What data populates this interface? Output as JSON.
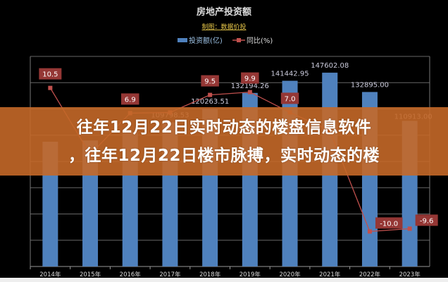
{
  "chart_data": {
    "type": "bar+line",
    "title": "房地产投资额",
    "subtitle": "制图：数据价投",
    "categories": [
      "2014年",
      "2015年",
      "2016年",
      "2017年",
      "2018年",
      "2019年",
      "2020年",
      "2021年",
      "2022年",
      "2023年"
    ],
    "series": [
      {
        "name": "投资额(亿)",
        "type": "bar",
        "axis": "left",
        "color": "#4f81bd",
        "values": [
          95035.61,
          95978.85,
          102580.61,
          109798.53,
          120263.51,
          132194.26,
          141442.95,
          147602.08,
          132895.0,
          110913.0
        ],
        "labels": [
          "",
          "",
          "",
          "109798.53",
          "120263.51",
          "132194.26",
          "141442.95",
          "147602.08",
          "132895.00",
          "110913.00"
        ]
      },
      {
        "name": "同比(%)",
        "type": "line",
        "axis": "right",
        "color": "#c0504d",
        "values": [
          10.5,
          1.0,
          6.9,
          7.0,
          9.5,
          9.9,
          7.0,
          4.4,
          -10.0,
          -9.6
        ],
        "labels": [
          "10.5",
          "",
          "6.9",
          "",
          "9.5",
          "9.9",
          "7.0",
          "",
          "-10.0",
          "-9.6"
        ]
      }
    ],
    "ylim_left": [
      0,
      160000
    ],
    "ylim_right": [
      -15,
      15
    ],
    "grid": true,
    "legend": "top-center",
    "background": "#000000"
  },
  "overlay": {
    "line1": "往年12月22日实时动态的楼盘信息软件",
    "line2": "，往年12月22日楼市脉搏，实时动态的楼"
  }
}
